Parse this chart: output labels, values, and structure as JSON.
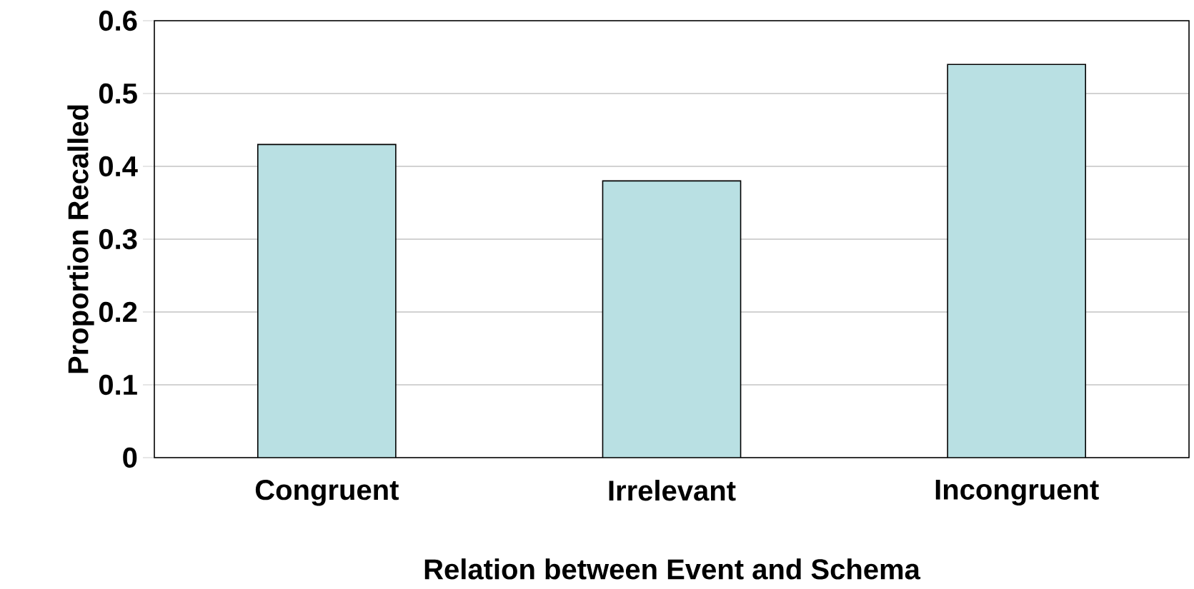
{
  "chart_data": {
    "type": "bar",
    "xlabel": "Relation between Event and Schema",
    "ylabel": "Proportion Recalled",
    "categories": [
      "Congruent",
      "Irrelevant",
      "Incongruent"
    ],
    "values": [
      0.43,
      0.38,
      0.54
    ],
    "color": "#b9e0e3",
    "ylim": [
      0,
      0.6
    ],
    "yticks": [
      0,
      0.1,
      0.2,
      0.3,
      0.4,
      0.5,
      0.6
    ],
    "grid": "y"
  }
}
